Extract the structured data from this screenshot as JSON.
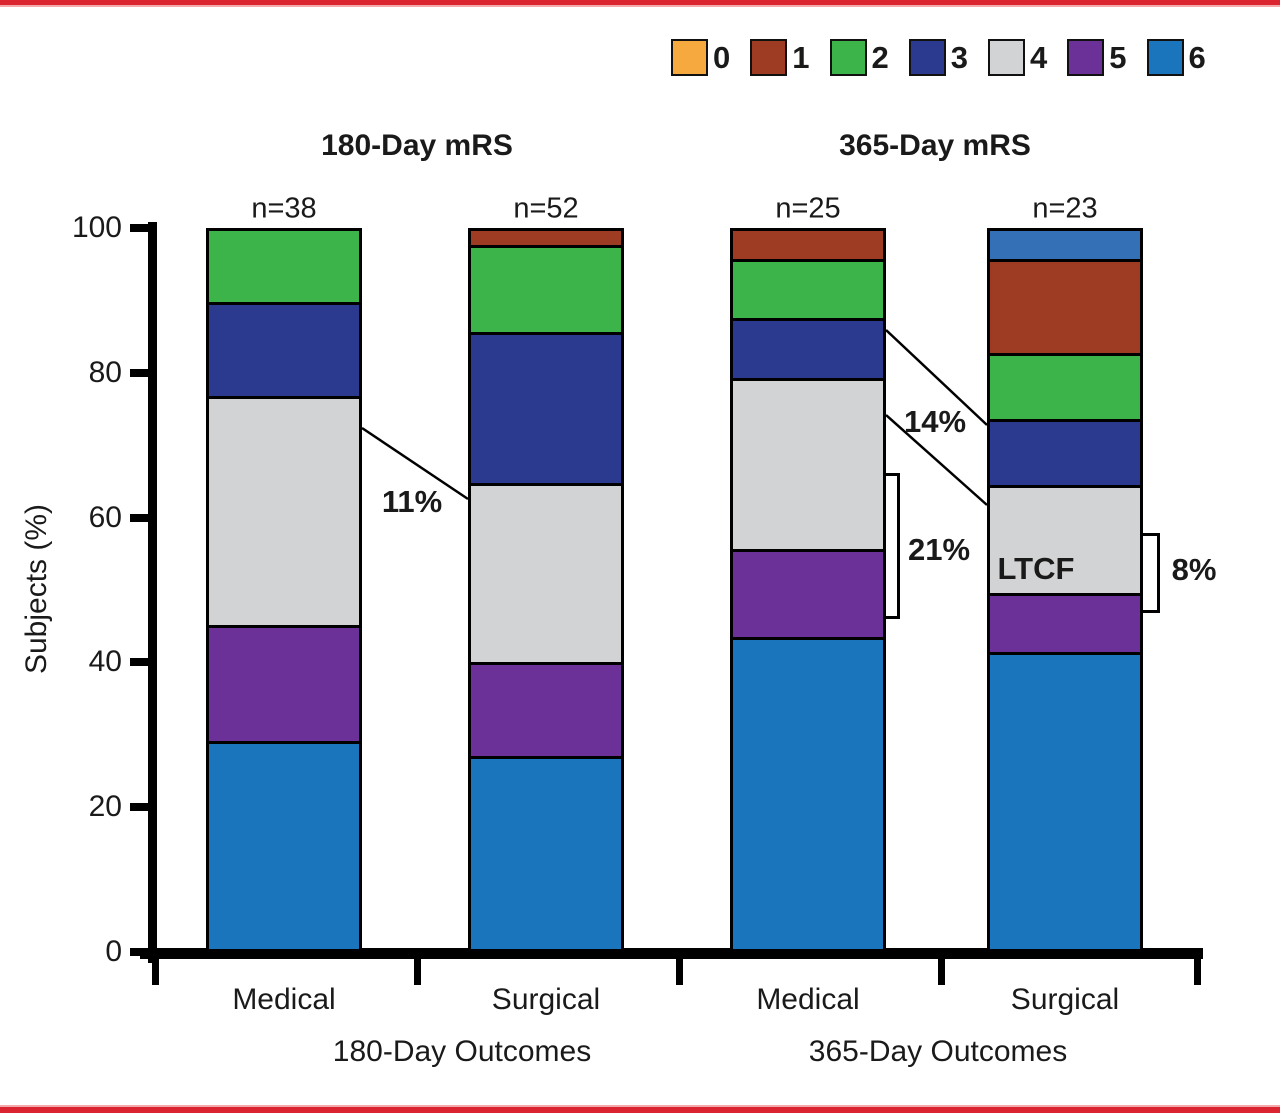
{
  "page": {
    "border_color": "#DA2430",
    "border_soft_color": "#F3A9AE"
  },
  "legend": {
    "items": [
      {
        "label": "0",
        "color": "#F5A93F"
      },
      {
        "label": "1",
        "color": "#9E3B23"
      },
      {
        "label": "2",
        "color": "#3CB44A"
      },
      {
        "label": "3",
        "color": "#2B3A8E"
      },
      {
        "label": "4",
        "color": "#D2D3D4"
      },
      {
        "label": "5",
        "color": "#6B3199"
      },
      {
        "label": "6",
        "color": "#1B75BC"
      }
    ]
  },
  "chart_data": {
    "type": "bar",
    "stacked": true,
    "group_titles": [
      "180-Day mRS",
      "365-Day mRS"
    ],
    "ylabel": "Subjects (%)",
    "ylim": [
      0,
      100
    ],
    "yticks": [
      "0",
      "20",
      "40",
      "60",
      "80",
      "100"
    ],
    "ytick_values": [
      0,
      20,
      40,
      60,
      80,
      100
    ],
    "legend_position": "top-right",
    "grid": false,
    "mrs_colors": {
      "0": "#F5A93F",
      "1": "#9E3B23",
      "2": "#3CB44A",
      "3": "#2B3A8E",
      "4": "#D2D3D4",
      "5": "#6B3199",
      "6": "#1B75BC",
      "6_alt": "#3470B5"
    },
    "bars": [
      {
        "group": "180-Day Outcomes",
        "category": "Medical",
        "n_label": "n=38",
        "segments_bottom_up": [
          {
            "mrs": "6",
            "value": 29
          },
          {
            "mrs": "5",
            "value": 16
          },
          {
            "mrs": "4",
            "value": 32
          },
          {
            "mrs": "3",
            "value": 13
          },
          {
            "mrs": "2",
            "value": 10
          }
        ]
      },
      {
        "group": "180-Day Outcomes",
        "category": "Surgical",
        "n_label": "n=52",
        "segments_bottom_up": [
          {
            "mrs": "6",
            "value": 27
          },
          {
            "mrs": "5",
            "value": 13
          },
          {
            "mrs": "4",
            "value": 25
          },
          {
            "mrs": "3",
            "value": 21
          },
          {
            "mrs": "2",
            "value": 12
          },
          {
            "mrs": "1",
            "value": 2
          }
        ]
      },
      {
        "group": "365-Day Outcomes",
        "category": "Medical",
        "n_label": "n=25",
        "segments_bottom_up": [
          {
            "mrs": "6",
            "value": 44
          },
          {
            "mrs": "5",
            "value": 12
          },
          {
            "mrs": "4",
            "value": 24
          },
          {
            "mrs": "3",
            "value": 8
          },
          {
            "mrs": "2",
            "value": 8
          },
          {
            "mrs": "1",
            "value": 4
          }
        ]
      },
      {
        "group": "365-Day Outcomes",
        "category": "Surgical",
        "n_label": "n=23",
        "segments_bottom_up": [
          {
            "mrs": "6",
            "value": 42
          },
          {
            "mrs": "5",
            "value": 8
          },
          {
            "mrs": "4",
            "value": 15
          },
          {
            "mrs": "3",
            "value": 9
          },
          {
            "mrs": "2",
            "value": 9
          },
          {
            "mrs": "1",
            "value": 13
          },
          {
            "mrs": "6_alt",
            "value": 4
          }
        ]
      }
    ],
    "group_labels": [
      "180-Day Outcomes",
      "365-Day Outcomes"
    ],
    "annotations": [
      {
        "id": "diff-180",
        "label": "11%"
      },
      {
        "id": "diff-365",
        "label": "14%"
      },
      {
        "id": "ltcf-medical",
        "label": "21%"
      },
      {
        "id": "ltcf-text",
        "label": "LTCF"
      },
      {
        "id": "ltcf-surgical",
        "label": "8%"
      }
    ]
  }
}
